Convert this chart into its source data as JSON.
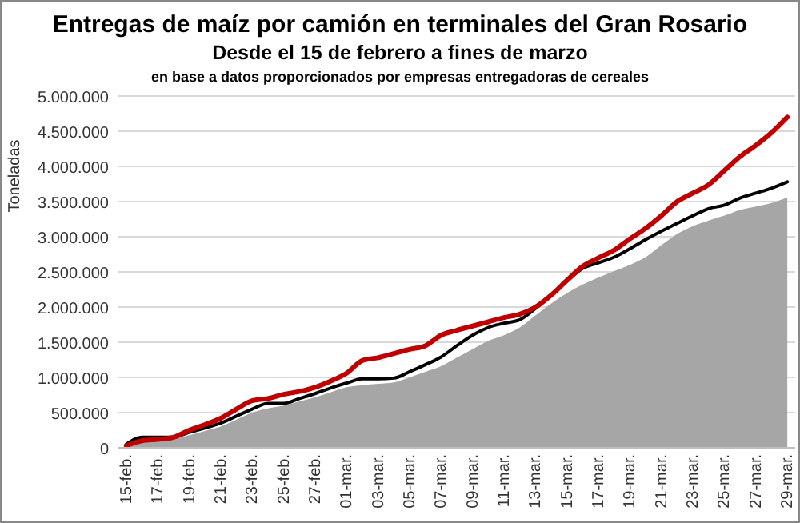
{
  "chart_data": {
    "type": "line",
    "title": "Entregas de maíz por camión en terminales del Gran Rosario",
    "subtitle": "Desde el 15 de febrero a fines de marzo",
    "annotations": [
      "en base a datos proporcionados por empresas entregadoras de cereales"
    ],
    "ylabel": "Toneladas",
    "categories": [
      "15-feb.",
      null,
      "17-feb.",
      null,
      "19-feb.",
      null,
      "21-feb.",
      null,
      "23-feb.",
      null,
      "25-feb.",
      null,
      "27-feb.",
      null,
      "01-mar.",
      null,
      "03-mar.",
      null,
      "05-mar.",
      null,
      "07-mar.",
      null,
      "09-mar.",
      null,
      "11-mar.",
      null,
      "13-mar.",
      null,
      "15-mar.",
      null,
      "17-mar.",
      null,
      "19-mar.",
      null,
      "21-mar.",
      null,
      "23-mar.",
      null,
      "25-mar.",
      null,
      "27-mar.",
      null,
      "29-mar."
    ],
    "series": [
      {
        "type": "area",
        "color": "#a6a6a6",
        "values": [
          20000,
          100000,
          120000,
          130000,
          180000,
          240000,
          300000,
          400000,
          500000,
          560000,
          600000,
          660000,
          720000,
          790000,
          860000,
          890000,
          910000,
          930000,
          1000000,
          1080000,
          1160000,
          1280000,
          1400000,
          1520000,
          1600000,
          1710000,
          1880000,
          2050000,
          2200000,
          2320000,
          2420000,
          2510000,
          2600000,
          2710000,
          2880000,
          3040000,
          3150000,
          3230000,
          3300000,
          3380000,
          3430000,
          3480000,
          3560000
        ]
      },
      {
        "color": "#000000",
        "values": [
          50000,
          150000,
          150000,
          150000,
          220000,
          280000,
          350000,
          450000,
          550000,
          630000,
          630000,
          700000,
          770000,
          850000,
          920000,
          980000,
          980000,
          990000,
          1080000,
          1180000,
          1290000,
          1450000,
          1600000,
          1710000,
          1770000,
          1820000,
          1980000,
          2170000,
          2370000,
          2550000,
          2630000,
          2710000,
          2830000,
          2960000,
          3080000,
          3190000,
          3300000,
          3400000,
          3450000,
          3550000,
          3620000,
          3690000,
          3780000
        ]
      },
      {
        "color": "#c00000",
        "values": [
          30000,
          100000,
          120000,
          150000,
          250000,
          330000,
          420000,
          550000,
          670000,
          700000,
          760000,
          800000,
          860000,
          950000,
          1060000,
          1240000,
          1280000,
          1340000,
          1400000,
          1450000,
          1600000,
          1670000,
          1730000,
          1790000,
          1850000,
          1900000,
          2000000,
          2170000,
          2380000,
          2580000,
          2700000,
          2810000,
          2970000,
          3120000,
          3300000,
          3500000,
          3620000,
          3740000,
          3940000,
          4140000,
          4300000,
          4480000,
          4700000
        ]
      }
    ],
    "ylim": [
      0,
      5000000
    ],
    "yticks": [
      0,
      {
        "value": 500000,
        "label": "500.000"
      },
      {
        "value": 1000000,
        "label": "1.000.000"
      },
      {
        "value": 1500000,
        "label": "1.500.000"
      },
      {
        "value": 2000000,
        "label": "2.000.000"
      },
      {
        "value": 2500000,
        "label": "2.500.000"
      },
      {
        "value": 3000000,
        "label": "3.000.000"
      },
      {
        "value": 3500000,
        "label": "3.500.000"
      },
      {
        "value": 4000000,
        "label": "4.000.000"
      },
      {
        "value": 4500000,
        "label": "4.500.000"
      },
      {
        "value": 5000000,
        "label": "5.000.000"
      }
    ],
    "grid": "y"
  }
}
